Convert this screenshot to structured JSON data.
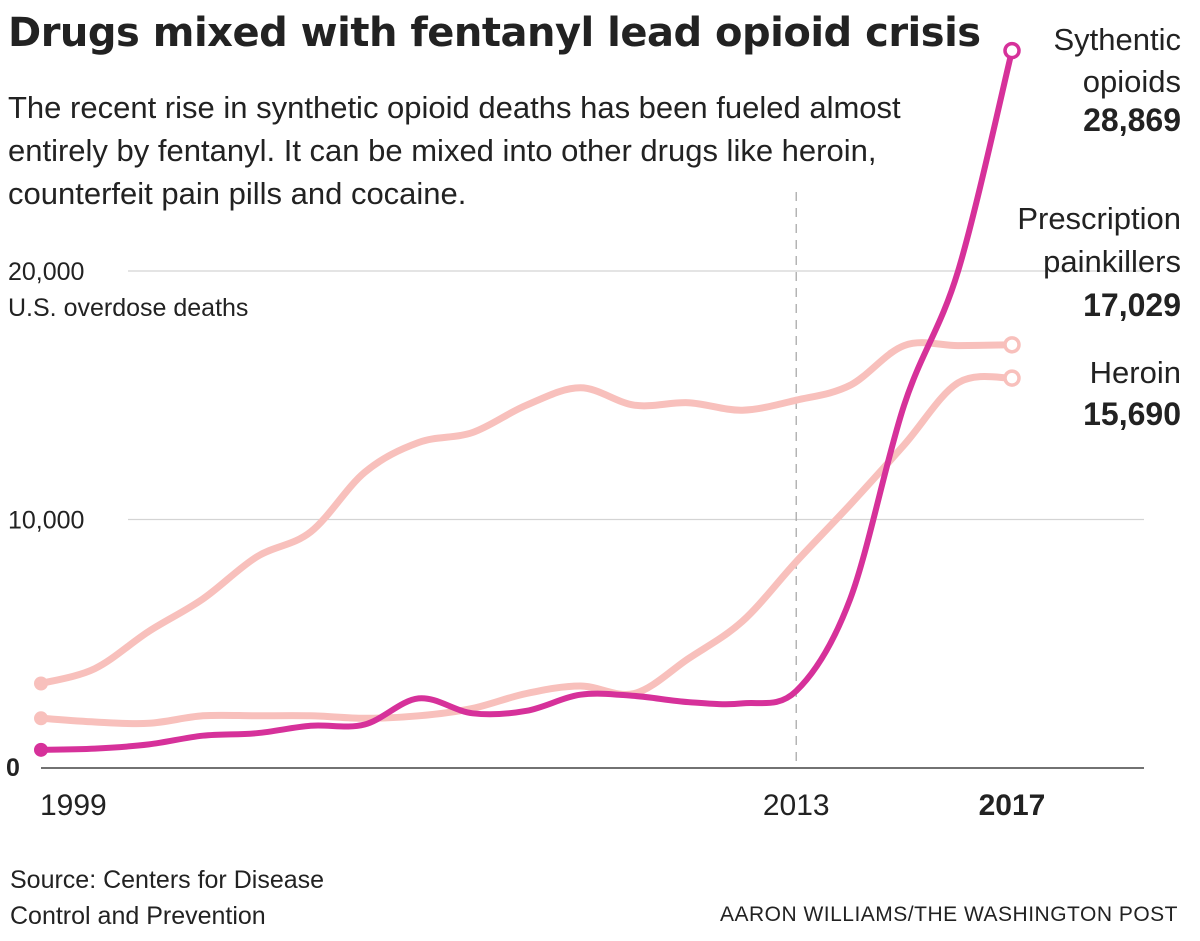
{
  "title": "Drugs mixed with fentanyl lead opioid crisis",
  "subtitle": "The recent rise in synthetic opioid deaths has been fueled almost entirely by fentanyl. It can be mixed into other drugs like heroin, counterfeit pain pills and cocaine.",
  "source": "Source: Centers for Disease Control and Prevention",
  "credit": "AARON WILLIAMS/THE WASHINGTON POST",
  "colors": {
    "synthetic": "#d6319a",
    "other": "#f8c0bc",
    "grid": "#d4d4d4",
    "axis": "#444444"
  },
  "chart_data": {
    "type": "line",
    "title": "Drugs mixed with fentanyl lead opioid crisis",
    "ylabel": "U.S. overdose deaths",
    "xlabel": "",
    "x": [
      1999,
      2000,
      2001,
      2002,
      2003,
      2004,
      2005,
      2006,
      2007,
      2008,
      2009,
      2010,
      2011,
      2012,
      2013,
      2014,
      2015,
      2016,
      2017
    ],
    "xlim": [
      1999,
      2020
    ],
    "ylim": [
      0,
      20000
    ],
    "y_ticks": [
      {
        "value": 20000,
        "label": "20,000",
        "bold": false
      },
      {
        "value": 10000,
        "label": "10,000",
        "bold": false
      },
      {
        "value": 0,
        "label": "0",
        "bold": true
      }
    ],
    "x_ticks": [
      {
        "value": 1999,
        "label": "1999",
        "bold": false
      },
      {
        "value": 2013,
        "label": "2013",
        "bold": false
      },
      {
        "value": 2017,
        "label": "2017",
        "bold": true
      }
    ],
    "reference_line_x": 2013,
    "series": [
      {
        "name": "Prescription painkillers",
        "value_label": "17,029",
        "color_key": "other",
        "values": [
          3400,
          4000,
          5500,
          6800,
          8500,
          9500,
          11900,
          13100,
          13500,
          14600,
          15300,
          14600,
          14700,
          14400,
          14800,
          15400,
          17000,
          17000,
          17029
        ]
      },
      {
        "name": "Heroin",
        "value_label": "15,690",
        "color_key": "other",
        "values": [
          2000,
          1850,
          1800,
          2100,
          2100,
          2100,
          2000,
          2100,
          2400,
          3000,
          3300,
          3000,
          4400,
          5900,
          8300,
          10600,
          13000,
          15500,
          15690
        ]
      },
      {
        "name": "Sythentic opioids",
        "value_label": "28,869",
        "color_key": "synthetic",
        "values": [
          730,
          780,
          950,
          1300,
          1400,
          1700,
          1750,
          2800,
          2200,
          2300,
          2950,
          2900,
          2650,
          2600,
          3100,
          6800,
          14600,
          20000,
          28869
        ]
      }
    ]
  },
  "labels": {
    "synthetic": {
      "line1": "Sythentic",
      "line2": "opioids",
      "value": "28,869"
    },
    "prescription": {
      "line1": "Prescription",
      "line2": "painkillers",
      "value": "17,029"
    },
    "heroin": {
      "line1": "Heroin",
      "value": "15,690"
    }
  }
}
